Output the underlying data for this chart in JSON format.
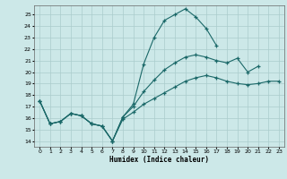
{
  "xlabel": "Humidex (Indice chaleur)",
  "bg_color": "#cce8e8",
  "grid_color": "#aacccc",
  "line_color": "#1a6868",
  "x_ticks": [
    0,
    1,
    2,
    3,
    4,
    5,
    6,
    7,
    8,
    9,
    10,
    11,
    12,
    13,
    14,
    15,
    16,
    17,
    18,
    19,
    20,
    21,
    22,
    23
  ],
  "y_ticks": [
    14,
    15,
    16,
    17,
    18,
    19,
    20,
    21,
    22,
    23,
    24,
    25
  ],
  "ylim": [
    13.5,
    25.8
  ],
  "xlim": [
    -0.5,
    23.5
  ],
  "line1_x": [
    0,
    1,
    2,
    3,
    4,
    5,
    6,
    7,
    8,
    9,
    10,
    11,
    12,
    13,
    14,
    15,
    16,
    17
  ],
  "line1_y": [
    17.5,
    15.5,
    15.7,
    16.4,
    16.2,
    15.5,
    15.3,
    14.0,
    16.1,
    17.2,
    20.7,
    23.0,
    24.5,
    25.0,
    25.5,
    24.8,
    23.8,
    22.3
  ],
  "line2_x": [
    0,
    1,
    2,
    3,
    4,
    5,
    6,
    7,
    8,
    9,
    10,
    11,
    12,
    13,
    14,
    15,
    16,
    17,
    18,
    19,
    20,
    21
  ],
  "line2_y": [
    17.5,
    15.5,
    15.7,
    16.4,
    16.2,
    15.5,
    15.3,
    14.0,
    16.1,
    17.0,
    18.3,
    19.3,
    20.2,
    20.8,
    21.3,
    21.5,
    21.3,
    21.0,
    20.8,
    21.2,
    20.0,
    20.5
  ],
  "line3_x": [
    0,
    1,
    2,
    3,
    4,
    5,
    6,
    7,
    8,
    9,
    10,
    11,
    12,
    13,
    14,
    15,
    16,
    17,
    18,
    19,
    20,
    21,
    22,
    23
  ],
  "line3_y": [
    17.5,
    15.5,
    15.7,
    16.4,
    16.2,
    15.5,
    15.3,
    14.0,
    15.9,
    16.5,
    17.2,
    17.7,
    18.2,
    18.7,
    19.2,
    19.5,
    19.7,
    19.5,
    19.2,
    19.0,
    18.9,
    19.0,
    19.2,
    19.2
  ]
}
